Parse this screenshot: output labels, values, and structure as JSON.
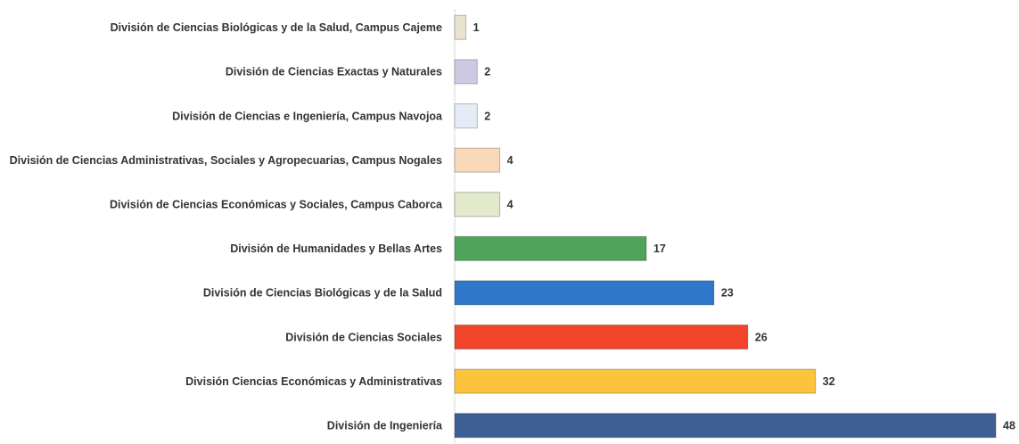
{
  "chart_data": {
    "type": "bar",
    "orientation": "horizontal",
    "categories": [
      "División de Ciencias Biológicas y de la Salud, Campus Cajeme",
      "División de Ciencias Exactas y Naturales",
      "División de Ciencias e Ingeniería, Campus Navojoa",
      "División de Ciencias Administrativas, Sociales y Agropecuarias, Campus Nogales",
      "División de Ciencias Económicas y Sociales, Campus Caborca",
      "División de Humanidades y Bellas Artes",
      "División de Ciencias Biológicas y de la Salud",
      "División de Ciencias Sociales",
      "División Ciencias Económicas y Administrativas",
      "División de Ingeniería"
    ],
    "values": [
      1,
      2,
      2,
      4,
      4,
      17,
      23,
      26,
      32,
      48
    ],
    "colors": [
      "#e8e2cf",
      "#cfc8e2",
      "#e6ecf7",
      "#f9d8ba",
      "#e2eacb",
      "#4fa35b",
      "#2f78c9",
      "#f0452a",
      "#fbc43c",
      "#3f5f94"
    ]
  }
}
